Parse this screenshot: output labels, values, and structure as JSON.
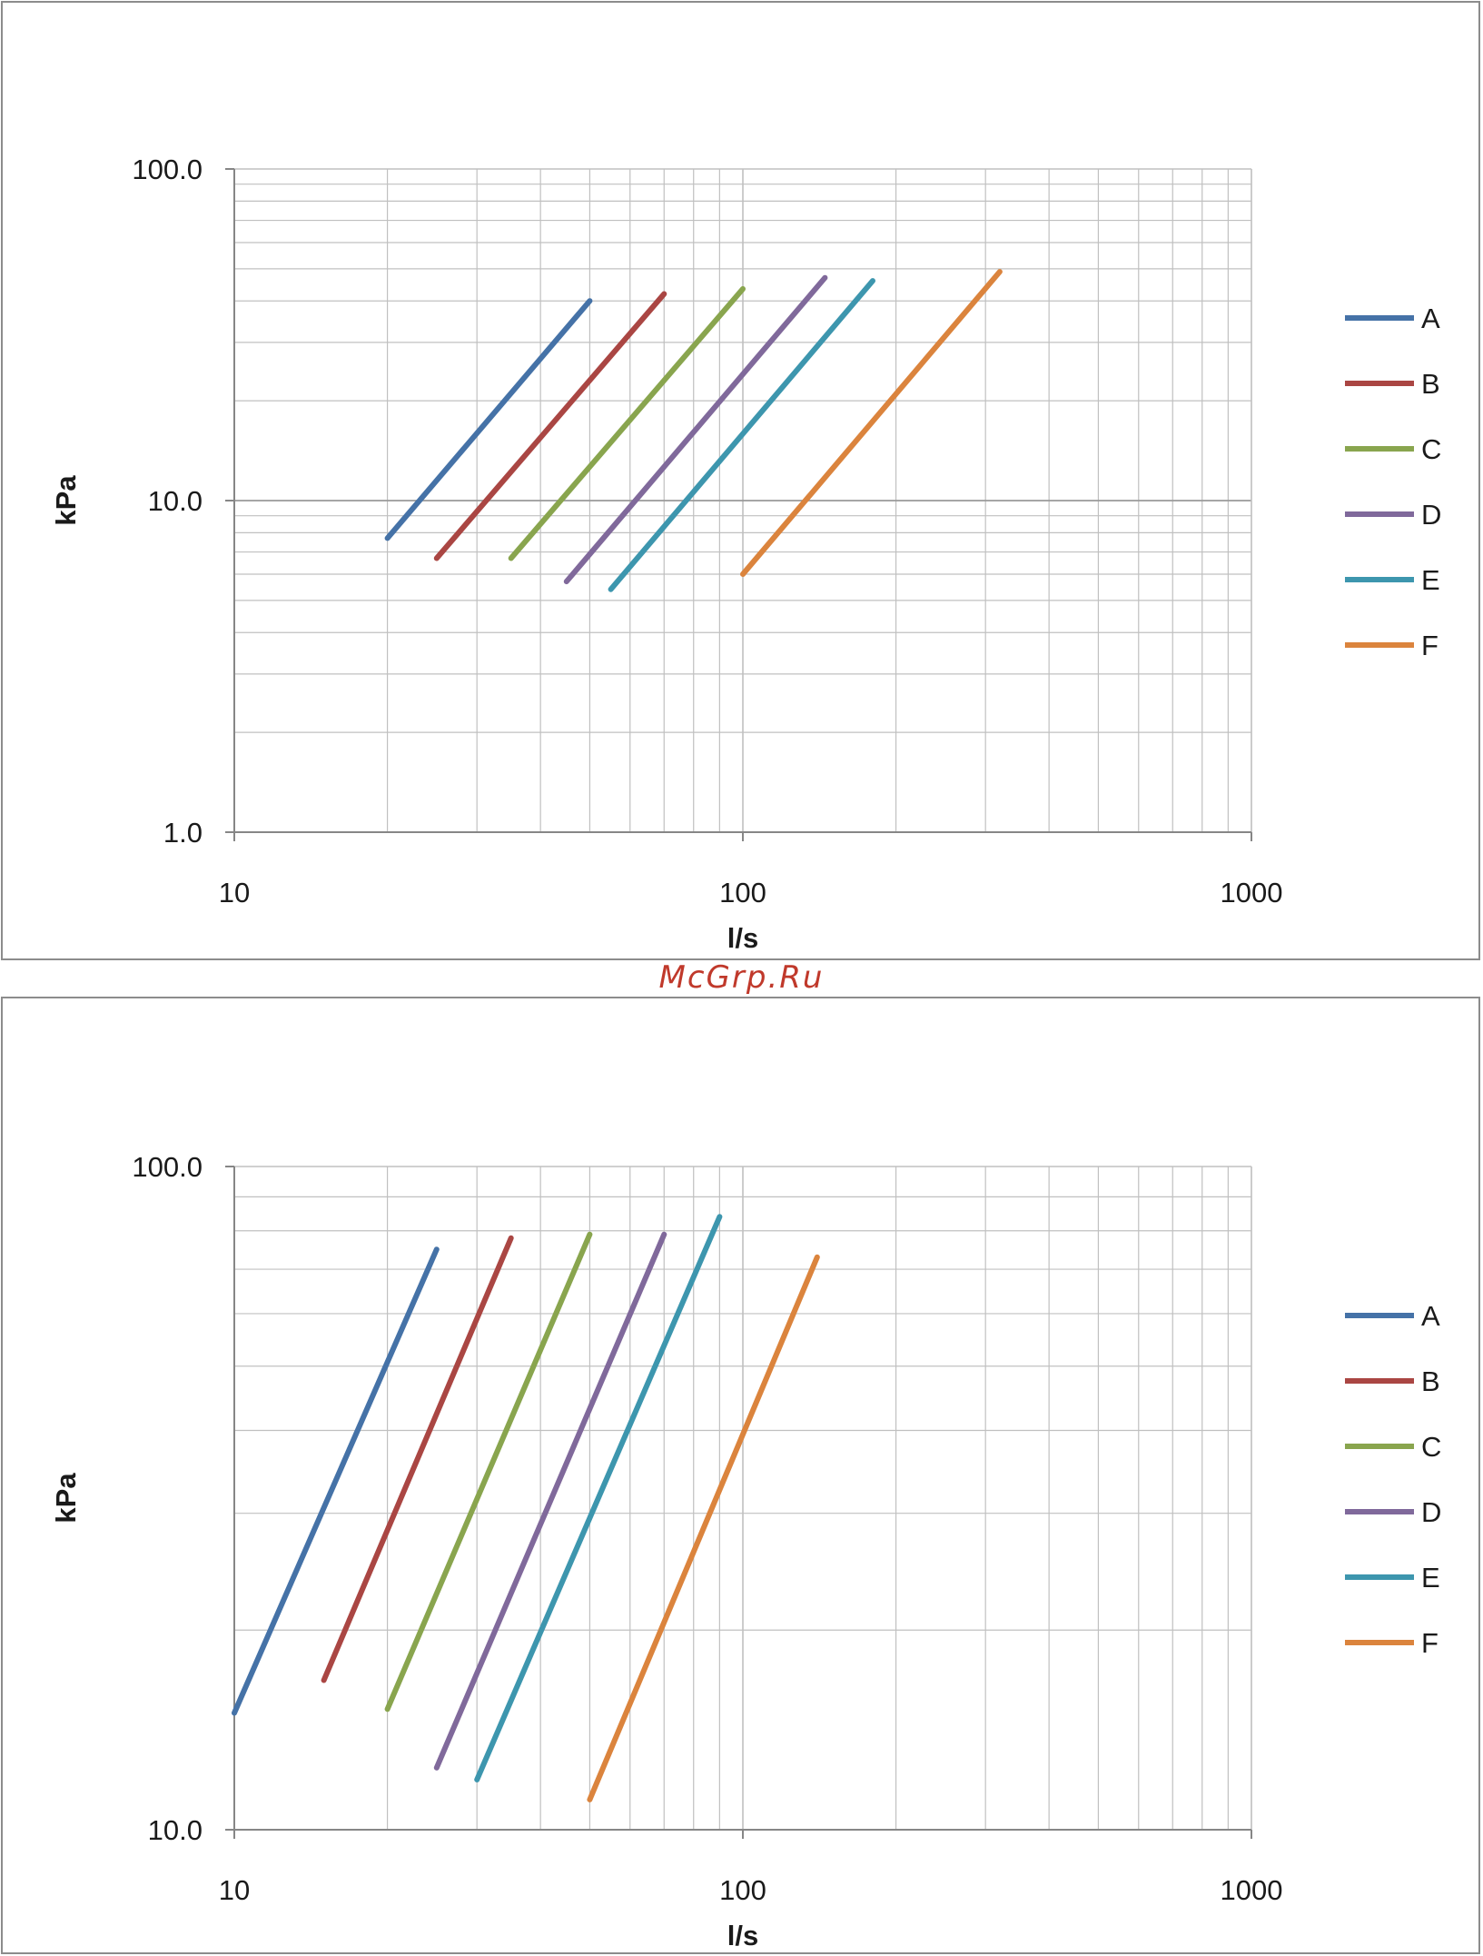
{
  "watermark": "McGrp.Ru",
  "colors": {
    "A": "#4572a7",
    "B": "#aa4643",
    "C": "#89a54e",
    "D": "#80699b",
    "E": "#3d96ae",
    "F": "#db843d",
    "grid": "#c0c0c0",
    "axis": "#868686"
  },
  "chart_data": [
    {
      "type": "line",
      "xscale": "log",
      "yscale": "log",
      "xlim": [
        10,
        1000
      ],
      "ylim": [
        1,
        100
      ],
      "xlabel": "l/s",
      "ylabel": "kPa",
      "x_ticks": [
        "10",
        "100",
        "1000"
      ],
      "y_ticks": [
        "1.0",
        "10.0",
        "100.0"
      ],
      "grid": true,
      "legend_position": "right",
      "series": [
        {
          "name": "A",
          "points": [
            [
              20,
              7.7
            ],
            [
              50,
              40
            ]
          ]
        },
        {
          "name": "B",
          "points": [
            [
              25,
              6.7
            ],
            [
              70,
              42
            ]
          ]
        },
        {
          "name": "C",
          "points": [
            [
              35,
              6.7
            ],
            [
              100,
              43.5
            ]
          ]
        },
        {
          "name": "D",
          "points": [
            [
              45,
              5.7
            ],
            [
              145,
              47
            ]
          ]
        },
        {
          "name": "E",
          "points": [
            [
              55,
              5.4
            ],
            [
              180,
              46
            ]
          ]
        },
        {
          "name": "F",
          "points": [
            [
              100,
              6
            ],
            [
              320,
              49
            ]
          ]
        }
      ]
    },
    {
      "type": "line",
      "xscale": "log",
      "yscale": "log",
      "xlim": [
        10,
        1000
      ],
      "ylim": [
        10,
        100
      ],
      "xlabel": "l/s",
      "ylabel": "kPa",
      "x_ticks": [
        "10",
        "100",
        "1000"
      ],
      "y_ticks": [
        "10.0",
        "100.0"
      ],
      "grid": true,
      "legend_position": "right",
      "series": [
        {
          "name": "A",
          "points": [
            [
              10,
              15
            ],
            [
              25,
              75
            ]
          ]
        },
        {
          "name": "B",
          "points": [
            [
              15,
              16.8
            ],
            [
              35,
              78
            ]
          ]
        },
        {
          "name": "C",
          "points": [
            [
              20,
              15.2
            ],
            [
              50,
              79
            ]
          ]
        },
        {
          "name": "D",
          "points": [
            [
              25,
              12.4
            ],
            [
              70,
              79
            ]
          ]
        },
        {
          "name": "E",
          "points": [
            [
              30,
              11.9
            ],
            [
              90,
              84
            ]
          ]
        },
        {
          "name": "F",
          "points": [
            [
              50,
              11.1
            ],
            [
              140,
              73
            ]
          ]
        }
      ]
    }
  ]
}
